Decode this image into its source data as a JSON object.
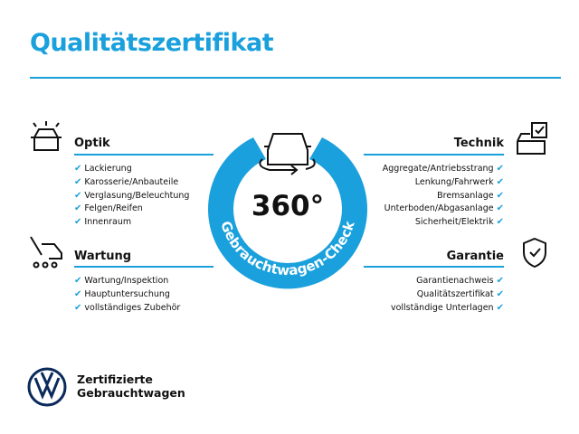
{
  "title": "Qualitätszertifikat",
  "center": {
    "value": "360°",
    "ring_text": "Gebrauchtwagen-Check"
  },
  "sections": {
    "optik": {
      "heading": "Optik",
      "icon": "car-lights-icon",
      "items": [
        "Lackierung",
        "Karosserie/Anbauteile",
        "Verglasung/Beleuchtung",
        "Felgen/Reifen",
        "Innenraum"
      ]
    },
    "wartung": {
      "heading": "Wartung",
      "icon": "service-car-icon",
      "items": [
        "Wartung/Inspektion",
        "Hauptuntersuchung",
        "vollständiges Zubehör"
      ]
    },
    "technik": {
      "heading": "Technik",
      "icon": "car-checklist-icon",
      "items": [
        "Aggregate/Antriebsstrang",
        "Lenkung/Fahrwerk",
        "Bremsanlage",
        "Unterboden/Abgasanlage",
        "Sicherheit/Elektrik"
      ]
    },
    "garantie": {
      "heading": "Garantie",
      "icon": "shield-check-icon",
      "items": [
        "Garantienachweis",
        "Qualitätszertifikat",
        "vollständige Unterlagen"
      ]
    }
  },
  "check": "✔",
  "footer": {
    "line1": "Zertifizierte",
    "line2": "Gebrauchtwagen"
  },
  "colors": {
    "accent": "#1aa0dc",
    "text": "#111111"
  }
}
